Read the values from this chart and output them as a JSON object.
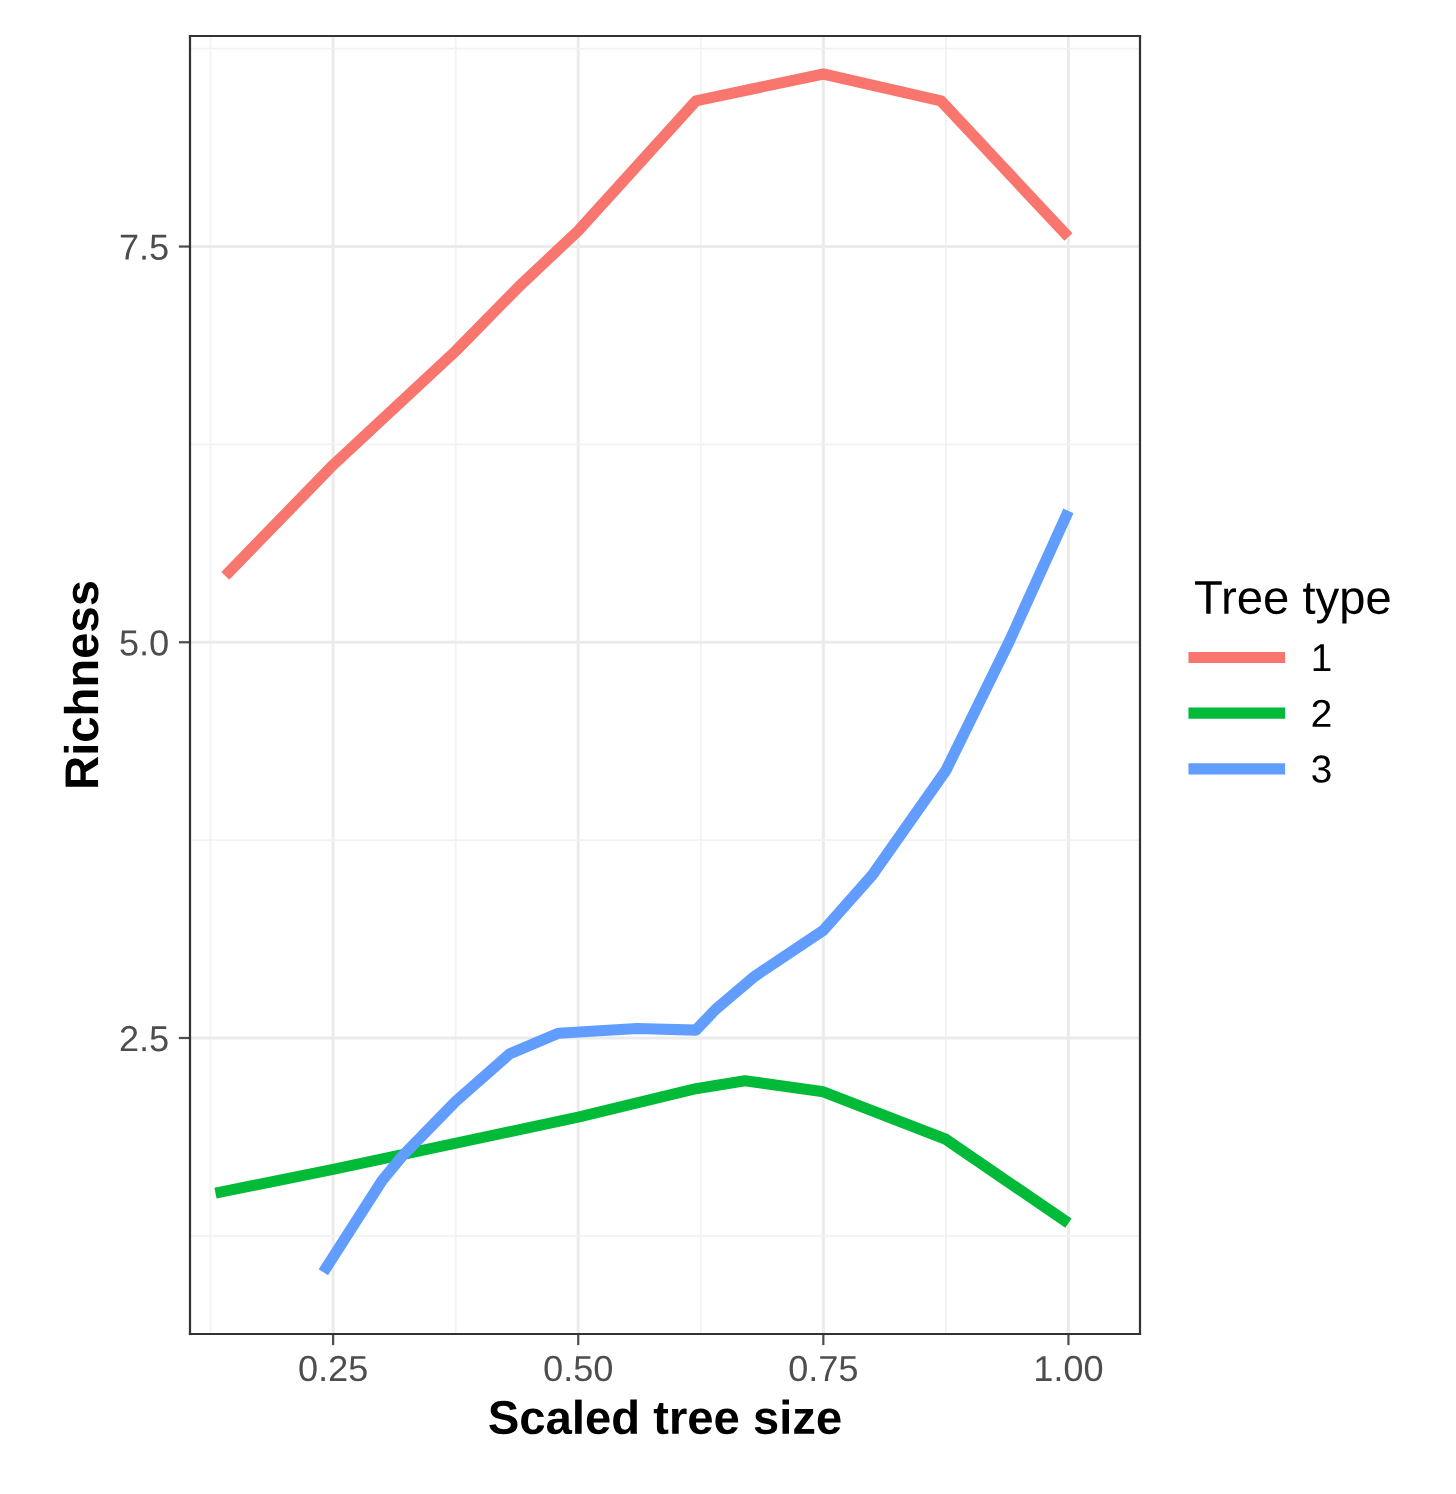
{
  "chart_data": {
    "type": "line",
    "xlabel": "Scaled tree size",
    "ylabel": "Richness",
    "legend_title": "Tree type",
    "xlim": [
      0.104,
      1.073
    ],
    "ylim": [
      0.63,
      8.83
    ],
    "xticks": [
      {
        "value": 0.25,
        "label": "0.25"
      },
      {
        "value": 0.5,
        "label": "0.50"
      },
      {
        "value": 0.75,
        "label": "0.75"
      },
      {
        "value": 1.0,
        "label": "1.00"
      }
    ],
    "yticks": [
      {
        "value": 2.5,
        "label": "2.5"
      },
      {
        "value": 5.0,
        "label": "5.0"
      },
      {
        "value": 7.5,
        "label": "7.5"
      }
    ],
    "grid": true,
    "legend": "right",
    "series": [
      {
        "name": "1",
        "color": "#f8766d",
        "x": [
          0.14,
          0.25,
          0.375,
          0.44,
          0.5,
          0.62,
          0.75,
          0.87,
          1.0
        ],
        "values": [
          5.42,
          6.12,
          6.84,
          7.25,
          7.6,
          8.42,
          8.59,
          8.42,
          7.56
        ]
      },
      {
        "name": "2",
        "color": "#00ba38",
        "x": [
          0.13,
          0.25,
          0.5,
          0.62,
          0.67,
          0.75,
          0.875,
          1.0
        ],
        "values": [
          1.52,
          1.67,
          2.0,
          2.18,
          2.23,
          2.16,
          1.86,
          1.33
        ]
      },
      {
        "name": "3",
        "color": "#619cff",
        "x": [
          0.24,
          0.3,
          0.32,
          0.375,
          0.43,
          0.48,
          0.56,
          0.62,
          0.64,
          0.68,
          0.75,
          0.8,
          0.875,
          0.94,
          1.0
        ],
        "values": [
          1.02,
          1.6,
          1.75,
          2.1,
          2.4,
          2.53,
          2.56,
          2.55,
          2.68,
          2.89,
          3.18,
          3.53,
          4.19,
          5.01,
          5.83
        ]
      }
    ]
  }
}
